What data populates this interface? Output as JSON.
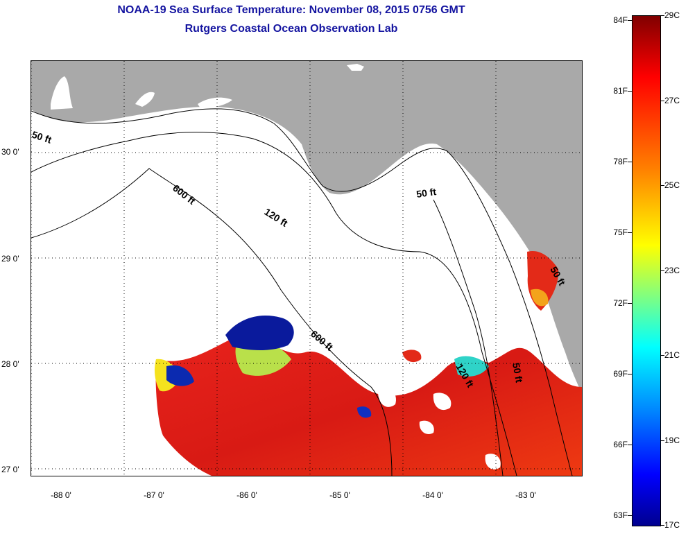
{
  "title": {
    "line1": "NOAA-19 Sea Surface Temperature:  November 08, 2015 0756 GMT",
    "line2": "Rutgers Coastal Ocean Observation Lab"
  },
  "map": {
    "lat_ticks": [
      "30 0'",
      "29 0'",
      "28 0'",
      "27 0'"
    ],
    "lat_values": [
      30,
      29,
      28,
      27
    ],
    "lon_ticks": [
      "-88 0'",
      "-87 0'",
      "-86 0'",
      "-85 0'",
      "-84 0'",
      "-83 0'"
    ],
    "lon_values": [
      -88,
      -87,
      -86,
      -85,
      -84,
      -83
    ],
    "depth_labels": [
      "50 ft",
      "600 ft",
      "120 ft",
      "50 ft",
      "600 ft",
      "120 ft",
      "50 ft",
      "50 ft"
    ],
    "colors": {
      "land": "#a9a9a9",
      "no_data": "#ffffff",
      "warm": "#e8231c",
      "cold": "#0a1a9c"
    }
  },
  "colorbar": {
    "f_labels": [
      "84F",
      "81F",
      "78F",
      "75F",
      "72F",
      "69F",
      "66F",
      "63F"
    ],
    "c_labels": [
      "29C",
      "27C",
      "25C",
      "23C",
      "21C",
      "19C",
      "17C"
    ],
    "range_c": [
      17,
      29
    ],
    "range_f": [
      63,
      84
    ]
  }
}
